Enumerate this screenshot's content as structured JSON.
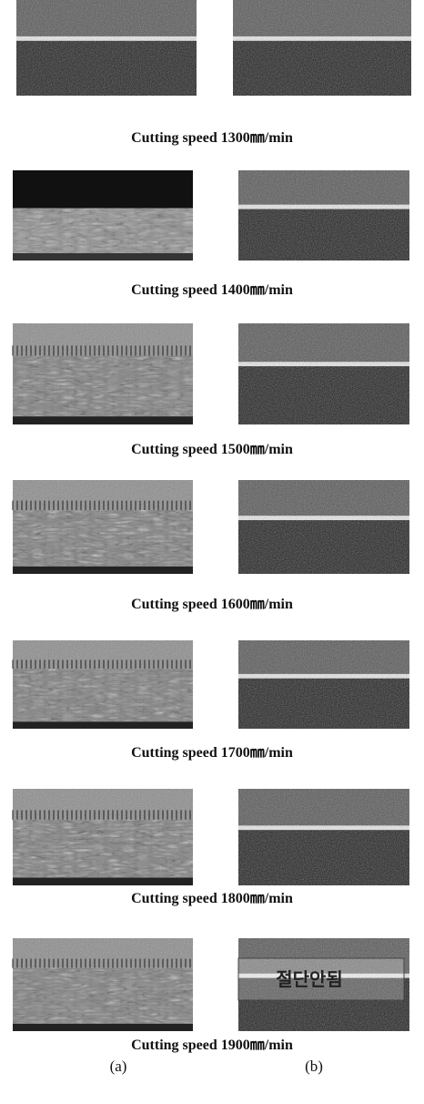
{
  "figure": {
    "panels": [
      {
        "caption": "Cutting speed 1300㎜/min"
      },
      {
        "caption": "Cutting speed 1400㎜/min"
      },
      {
        "caption": "Cutting speed 1500㎜/min"
      },
      {
        "caption": "Cutting speed 1600㎜/min"
      },
      {
        "caption": "Cutting speed 1700㎜/min"
      },
      {
        "caption": "Cutting speed 1800㎜/min"
      },
      {
        "caption": "Cutting speed 1900㎜/min"
      }
    ],
    "labels": [
      "(a)",
      "(b)"
    ],
    "annotation": "절단안됨"
  }
}
